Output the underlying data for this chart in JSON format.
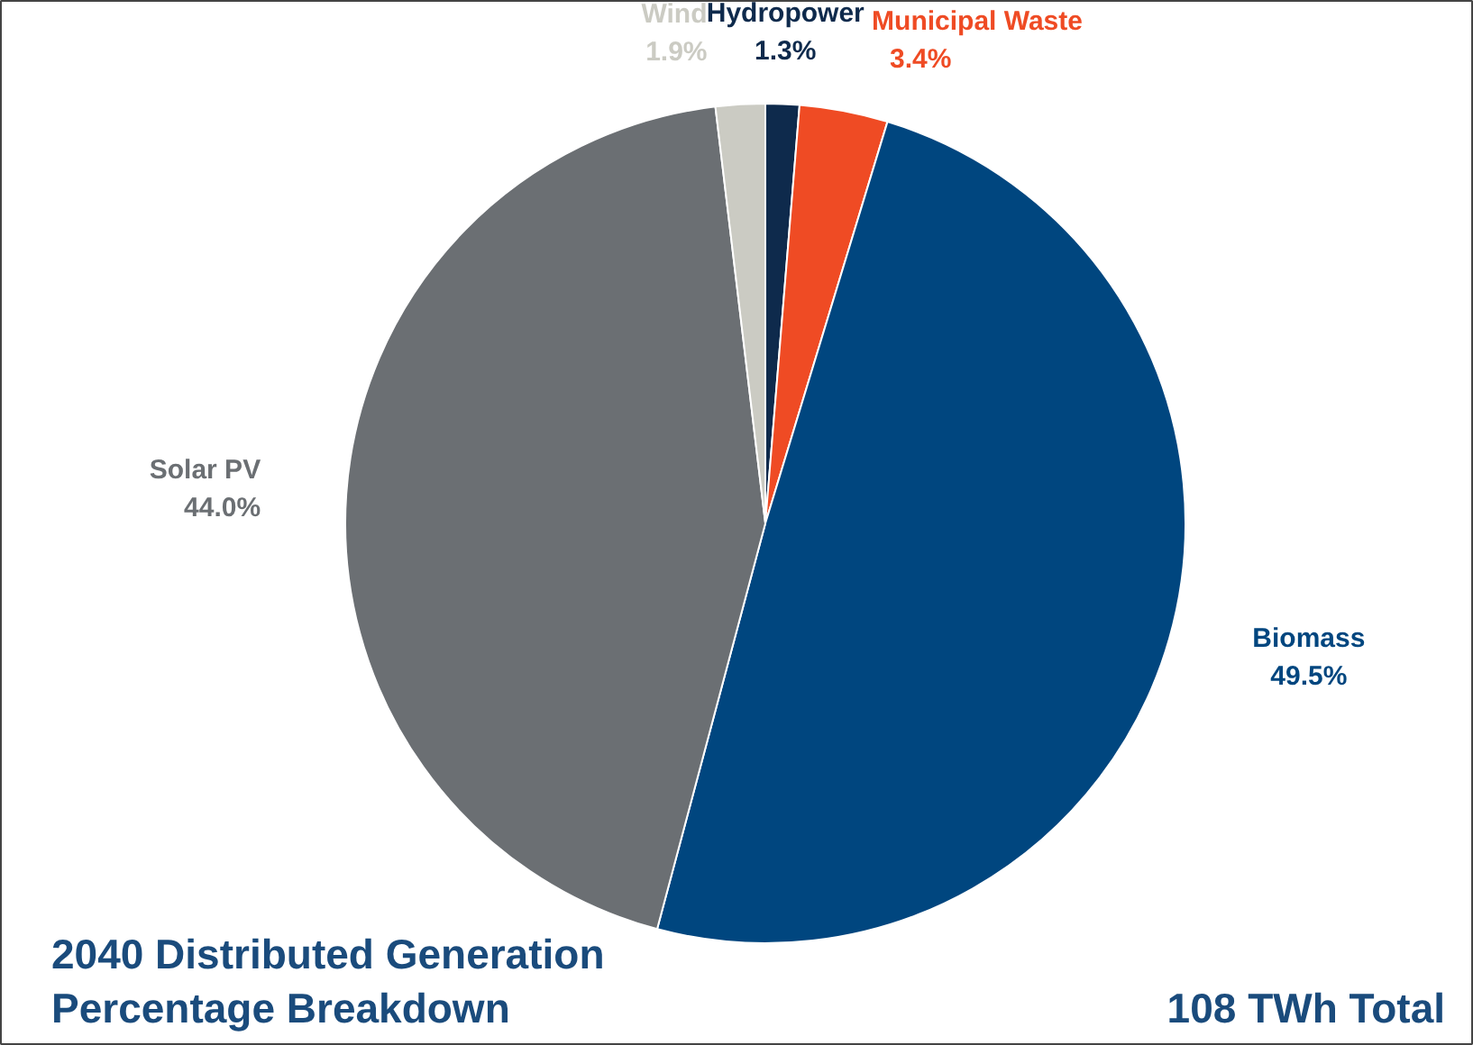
{
  "chart_data": {
    "type": "pie",
    "title": "2040 Distributed Generation\nPercentage Breakdown",
    "categories": [
      "Hydropower",
      "Municipal Waste",
      "Biomass",
      "Solar PV",
      "Wind"
    ],
    "values": [
      1.3,
      3.4,
      49.5,
      44.0,
      1.9
    ],
    "value_labels": [
      "1.3%",
      "3.4%",
      "49.5%",
      "44.0%",
      "1.9%"
    ],
    "colors": [
      "#0e2a4c",
      "#ef4b24",
      "#00467f",
      "#6b6f73",
      "#cbcbc3"
    ],
    "annotations": [
      "108 TWh Total"
    ]
  }
}
